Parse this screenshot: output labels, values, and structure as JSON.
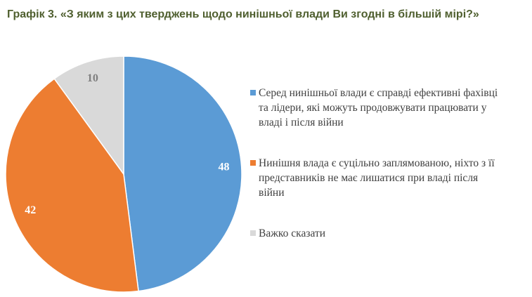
{
  "chart_data": {
    "type": "pie",
    "title": "Графік 3. «З яким з цих тверджень щодо нинішньої влади Ви згодні в більшій мірі?»",
    "categories": [
      "Серед нинішньої влади є справді ефективні фахівці та лідери, які можуть продовжувати працювати у владі і після війни",
      "Нинішня влада є суцільно заплямованою, ніхто з її представників не має лишатися при владі після війни",
      "Важко сказати"
    ],
    "values": [
      48,
      42,
      10
    ],
    "colors": [
      "#5b9bd5",
      "#ed7d31",
      "#d9d9d9"
    ],
    "label_colors": [
      "#ffffff",
      "#ffffff",
      "#7f7f7f"
    ],
    "legend": "right"
  }
}
